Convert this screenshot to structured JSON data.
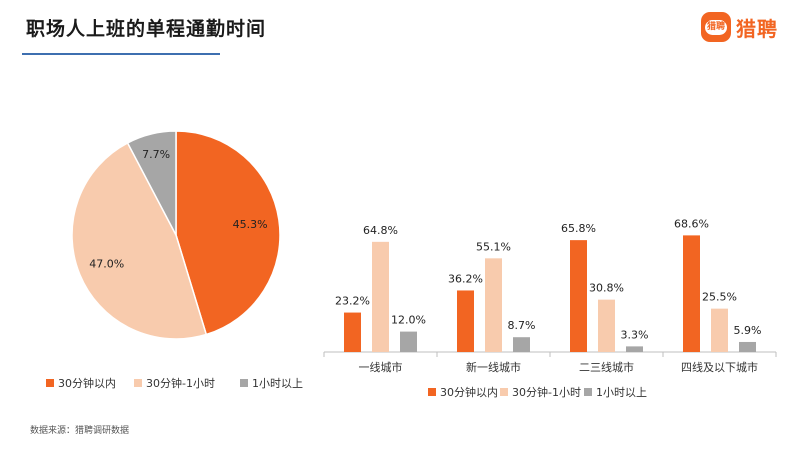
{
  "header": {
    "title": "职场人上班的单程通勤时间",
    "logo_mark": "猎聘",
    "logo_text": "猎聘"
  },
  "colors": {
    "series_1": "#f26522",
    "series_2": "#f8cbad",
    "series_3": "#a6a6a6",
    "title_rule": "#3e6fb0"
  },
  "chart_data": [
    {
      "type": "pie",
      "series_names": [
        "30分钟以内",
        "30分钟-1小时",
        "1小时以上"
      ],
      "values": [
        45.3,
        47.0,
        7.7
      ],
      "value_labels": [
        "45.3%",
        "47.0%",
        "7.7%"
      ],
      "unit": "%",
      "legend_position": "bottom"
    },
    {
      "type": "bar",
      "categories": [
        "一线城市",
        "新一线城市",
        "二三线城市",
        "四线及以下城市"
      ],
      "series": [
        {
          "name": "30分钟以内",
          "values": [
            23.2,
            36.2,
            65.8,
            68.6
          ]
        },
        {
          "name": "30分钟-1小时",
          "values": [
            64.8,
            55.1,
            30.8,
            25.5
          ]
        },
        {
          "name": "1小时以上",
          "values": [
            12.0,
            8.7,
            3.3,
            5.9
          ]
        }
      ],
      "value_labels": [
        [
          "23.2%",
          "64.8%",
          "12.0%"
        ],
        [
          "36.2%",
          "55.1%",
          "8.7%"
        ],
        [
          "65.8%",
          "30.8%",
          "3.3%"
        ],
        [
          "68.6%",
          "25.5%",
          "5.9%"
        ]
      ],
      "unit": "%",
      "ylim": [
        0,
        100
      ],
      "grid": false,
      "legend_position": "bottom"
    }
  ],
  "footer": {
    "source": "数据来源：猎聘调研数据"
  }
}
